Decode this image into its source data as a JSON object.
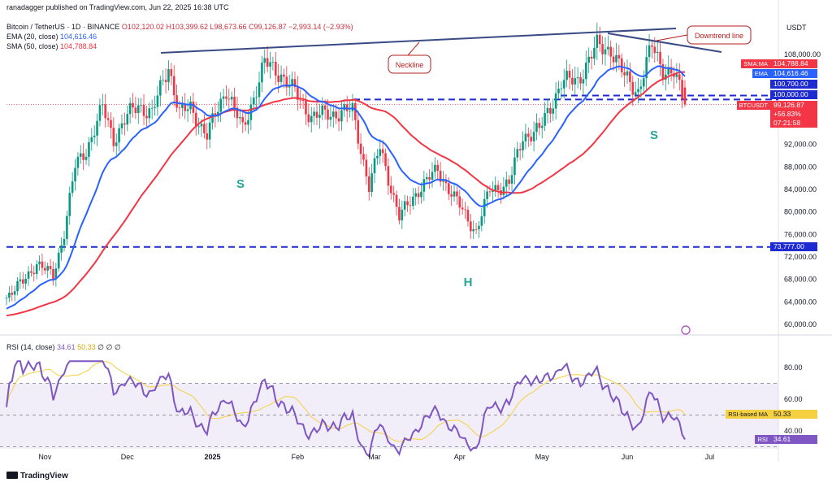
{
  "header": {
    "line1_user": "ranadagger published on TradingView.com, Jun 22, 2025 16:38 UTC",
    "line2_symbol": "Bitcoin / TetherUS · 1D · BINANCE",
    "line2_ohlc": "O102,120.02  H103,399.62  L98,673.66  C99,126.87  −2,993.14 (−2.93%)",
    "line3_ema": "EMA (20, close)",
    "line3_ema_val": "104,616.46",
    "line4_sma": "SMA (50, close)",
    "line4_sma_val": "104,788.84",
    "rsi_label": "RSI (14, close)",
    "rsi_val": "34.61",
    "rsi_ma_val": "50.33",
    "rsi_extra": "∅  ∅  ∅"
  },
  "branding": {
    "logo_text": "TradingView"
  },
  "price_axis": {
    "currency": "USDT",
    "ticks": [
      "108,000.00",
      "92,000.00",
      "88,000.00",
      "84,000.00",
      "80,000.00",
      "76,000.00",
      "72,000.00",
      "68,000.00",
      "64,000.00",
      "60,000.00"
    ],
    "tags": {
      "sma_name": "SMA:MA",
      "sma": "104,788.84",
      "ema_name": "EMA",
      "ema": "104,616.46",
      "lvl1": "100,700.00",
      "lvl2": "100,000.00",
      "support": "73,777.00",
      "sym_name": "BTCUSDT",
      "price": "99,126.87",
      "chg": "+56.83%",
      "timer": "07:21:58"
    }
  },
  "rsi_axis": {
    "ticks": [
      "80.00",
      "60.00",
      "40.00"
    ],
    "ma_name": "RSI-based MA",
    "ma": "50.33",
    "rsi_name": "RSI",
    "rsi": "34.61"
  },
  "time_axis": [
    "Nov",
    "Dec",
    "2025",
    "Feb",
    "Mar",
    "Apr",
    "May",
    "Jun",
    "Jul"
  ],
  "annotations": {
    "neckline": "Neckline",
    "downtrend": "Downtrend line",
    "s_left": "S",
    "head": "H",
    "s_right": "S"
  },
  "colors": {
    "up": "#089981",
    "down": "#f23645",
    "ema": "#2962ff",
    "sma": "#f23645",
    "rsi": "#7e57c2",
    "rsi_ma": "#f5d041",
    "trendline": "#3a4a85",
    "dash": "#1d2bd0"
  },
  "chart_data": {
    "type": "candlestick",
    "symbol": "BTCUSDT",
    "timeframe": "1D",
    "y_range": [
      57000,
      112000
    ],
    "rsi_range": [
      20,
      90
    ],
    "close_series": [
      {
        "date": "2024-10-18",
        "close": 65000
      },
      {
        "date": "2024-10-24",
        "close": 67500
      },
      {
        "date": "2024-10-29",
        "close": 71000
      },
      {
        "date": "2024-11-04",
        "close": 68500
      },
      {
        "date": "2024-11-08",
        "close": 76500
      },
      {
        "date": "2024-11-12",
        "close": 88000
      },
      {
        "date": "2024-11-16",
        "close": 91000
      },
      {
        "date": "2024-11-22",
        "close": 98500
      },
      {
        "date": "2024-11-26",
        "close": 93000
      },
      {
        "date": "2024-12-01",
        "close": 97000
      },
      {
        "date": "2024-12-05",
        "close": 99000
      },
      {
        "date": "2024-12-10",
        "close": 97500
      },
      {
        "date": "2024-12-16",
        "close": 106000
      },
      {
        "date": "2024-12-20",
        "close": 97500
      },
      {
        "date": "2024-12-24",
        "close": 98500
      },
      {
        "date": "2024-12-30",
        "close": 93500
      },
      {
        "date": "2025-01-06",
        "close": 102000
      },
      {
        "date": "2025-01-12",
        "close": 94500
      },
      {
        "date": "2025-01-20",
        "close": 106500
      },
      {
        "date": "2025-01-26",
        "close": 104500
      },
      {
        "date": "2025-02-01",
        "close": 100500
      },
      {
        "date": "2025-02-06",
        "close": 97000
      },
      {
        "date": "2025-02-14",
        "close": 97500
      },
      {
        "date": "2025-02-21",
        "close": 98000
      },
      {
        "date": "2025-02-27",
        "close": 84500
      },
      {
        "date": "2025-03-03",
        "close": 91500
      },
      {
        "date": "2025-03-10",
        "close": 79000
      },
      {
        "date": "2025-03-17",
        "close": 84000
      },
      {
        "date": "2025-03-24",
        "close": 87500
      },
      {
        "date": "2025-03-30",
        "close": 82500
      },
      {
        "date": "2025-04-07",
        "close": 76500
      },
      {
        "date": "2025-04-12",
        "close": 84000
      },
      {
        "date": "2025-04-19",
        "close": 85000
      },
      {
        "date": "2025-04-24",
        "close": 93500
      },
      {
        "date": "2025-04-30",
        "close": 94500
      },
      {
        "date": "2025-05-08",
        "close": 103000
      },
      {
        "date": "2025-05-14",
        "close": 103500
      },
      {
        "date": "2025-05-21",
        "close": 109500
      },
      {
        "date": "2025-05-26",
        "close": 109000
      },
      {
        "date": "2025-05-31",
        "close": 104000
      },
      {
        "date": "2025-06-05",
        "close": 101500
      },
      {
        "date": "2025-06-10",
        "close": 109500
      },
      {
        "date": "2025-06-14",
        "close": 105500
      },
      {
        "date": "2025-06-18",
        "close": 104500
      },
      {
        "date": "2025-06-22",
        "close": 99126.87
      }
    ],
    "last_bar": {
      "open": 102120.02,
      "high": 103399.62,
      "low": 98673.66,
      "close": 99126.87,
      "change": -2993.14,
      "change_pct": -2.93
    },
    "ema20_last": 104616.46,
    "sma50_last": 104788.84,
    "horizontal_levels": [
      100700,
      100000,
      73777
    ],
    "rsi_last": 34.61,
    "rsi_ma_last": 50.33
  }
}
